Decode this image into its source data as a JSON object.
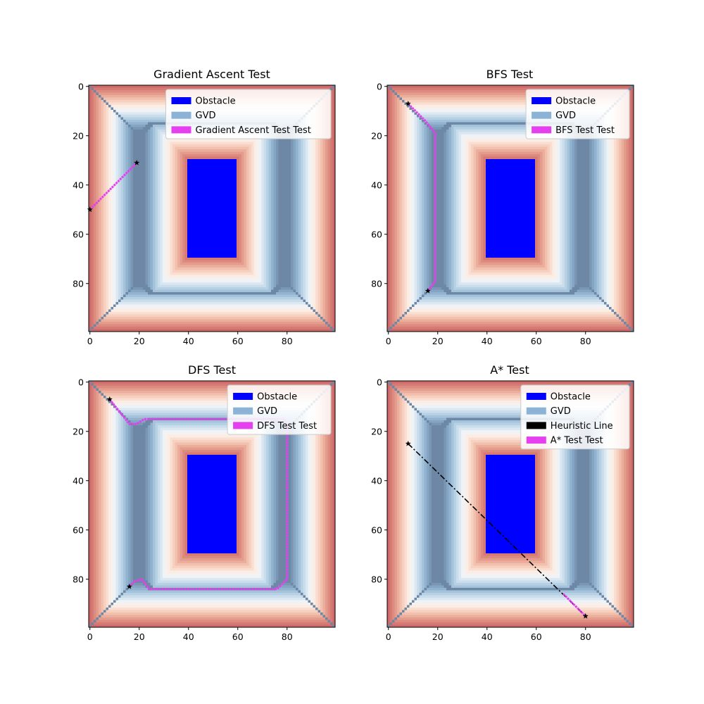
{
  "colors": {
    "obstacle": "#0000ff",
    "gvd": "#6d87a6",
    "gvd_legend": "#8cb3d6",
    "path": "#e53ff0",
    "heuristic": "#000000",
    "marker": "#000000"
  },
  "chart_data": [
    {
      "type": "heatmap",
      "title": "Gradient Ascent Test",
      "xlim": [
        0,
        99
      ],
      "ylim": [
        99,
        0
      ],
      "xticks": [
        0,
        20,
        40,
        60,
        80
      ],
      "yticks": [
        0,
        20,
        40,
        60,
        80
      ],
      "legend": [
        "Obstacle",
        "GVD",
        "Gradient Ascent Test Test"
      ],
      "legend_placement": "top-right",
      "path": [
        [
          0,
          50
        ],
        [
          19,
          31
        ]
      ],
      "markers": [
        [
          0,
          50
        ],
        [
          19,
          31
        ]
      ]
    },
    {
      "type": "heatmap",
      "title": "BFS Test",
      "xlim": [
        0,
        99
      ],
      "ylim": [
        99,
        0
      ],
      "xticks": [
        0,
        20,
        40,
        60,
        80
      ],
      "yticks": [
        0,
        20,
        40,
        60,
        80
      ],
      "legend": [
        "Obstacle",
        "GVD",
        "BFS Test Test"
      ],
      "legend_placement": "top-right",
      "path": [
        [
          8,
          7
        ],
        [
          15,
          14
        ],
        [
          19,
          19
        ],
        [
          19,
          79
        ],
        [
          16,
          83
        ]
      ],
      "markers": [
        [
          8,
          7
        ],
        [
          16,
          83
        ]
      ]
    },
    {
      "type": "heatmap",
      "title": "DFS Test",
      "xlim": [
        0,
        99
      ],
      "ylim": [
        99,
        0
      ],
      "xticks": [
        0,
        20,
        40,
        60,
        80
      ],
      "yticks": [
        0,
        20,
        40,
        60,
        80
      ],
      "legend": [
        "Obstacle",
        "GVD",
        "DFS Test Test"
      ],
      "legend_placement": "top-right",
      "path": [
        [
          8,
          7
        ],
        [
          16,
          17
        ],
        [
          19,
          17
        ],
        [
          22,
          15
        ],
        [
          79,
          15
        ],
        [
          80,
          18
        ],
        [
          80,
          80
        ],
        [
          76,
          84
        ],
        [
          24,
          84
        ],
        [
          21,
          80
        ],
        [
          18,
          81
        ],
        [
          16,
          83
        ]
      ],
      "markers": [
        [
          8,
          7
        ],
        [
          16,
          83
        ]
      ]
    },
    {
      "type": "heatmap",
      "title": "A* Test",
      "xlim": [
        0,
        99
      ],
      "ylim": [
        99,
        0
      ],
      "xticks": [
        0,
        20,
        40,
        60,
        80
      ],
      "yticks": [
        0,
        20,
        40,
        60,
        80
      ],
      "legend": [
        "Obstacle",
        "GVD",
        "Heuristic Line",
        "A* Test Test"
      ],
      "legend_placement": "top-right",
      "heuristic_line": [
        [
          8,
          25
        ],
        [
          80,
          95
        ]
      ],
      "path": [
        [
          71,
          86
        ],
        [
          80,
          95
        ]
      ],
      "markers": [
        [
          8,
          25
        ],
        [
          80,
          95
        ]
      ]
    }
  ]
}
